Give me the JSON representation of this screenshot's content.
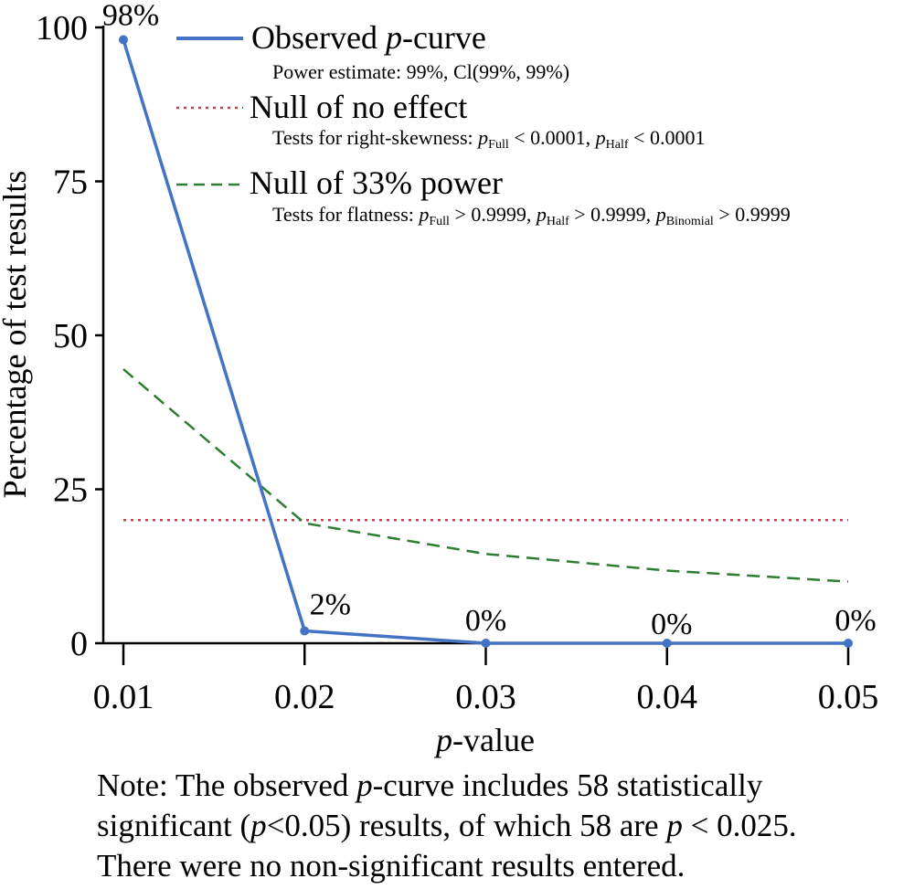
{
  "chart_data": {
    "type": "line",
    "x": [
      0.01,
      0.02,
      0.03,
      0.04,
      0.05
    ],
    "x_tick_labels": [
      "0.01",
      "0.02",
      "0.03",
      "0.04",
      "0.05"
    ],
    "y_ticks": [
      0,
      25,
      50,
      75,
      100
    ],
    "y_tick_labels": [
      "0",
      "25",
      "50",
      "75",
      "100"
    ],
    "ylim": [
      0,
      100
    ],
    "xlim": [
      0.01,
      0.05
    ],
    "xlabel_italic": "p",
    "xlabel_rest": "-value",
    "ylabel": "Percentage of test results",
    "grid": false,
    "legend_position": "top-right",
    "series": [
      {
        "key": "observed",
        "name_prefix": "Observed ",
        "name_italic": "p",
        "name_suffix": "-curve",
        "style": "solid",
        "color": "#4472C4",
        "values": [
          98,
          2,
          0,
          0,
          0
        ],
        "data_labels": [
          "98%",
          "2%",
          "0%",
          "0%",
          "0%"
        ],
        "subtitle": "Power estimate: 99%, Cl(99%, 99%)"
      },
      {
        "key": "null",
        "name": "Null of no effect",
        "style": "dotted",
        "color": "#E8333F",
        "values": [
          20,
          20,
          20,
          20,
          20
        ],
        "subtitle_text": "Tests for right-skewness: ",
        "subtitle_p": "p",
        "subtitle_sub1": "Full",
        "subtitle_val1": " <  0.0001, ",
        "subtitle_sub2": "Half",
        "subtitle_val2": " < 0.0001"
      },
      {
        "key": "power33",
        "name": "Null of 33% power",
        "style": "dashed",
        "color": "#2E7D32",
        "values": [
          44.5,
          19.5,
          14.5,
          11.8,
          10
        ],
        "subtitle_text": "Tests for flatness: ",
        "subtitle_p": "p",
        "subtitle_sub1": "Full",
        "subtitle_val1": " > 0.9999, ",
        "subtitle_sub2": "Half",
        "subtitle_val2": " > 0.9999, ",
        "subtitle_sub3": "Binomial",
        "subtitle_val3": " > 0.9999"
      }
    ]
  },
  "note": {
    "line1_a": "Note: The observed ",
    "line1_p": "p",
    "line1_b": "-curve includes 58 statistically",
    "line2_a": "significant (",
    "line2_p": "p",
    "line2_b": "<0.05) results, of which 58 are ",
    "line2_p2": "p",
    "line2_c": " < 0.025.",
    "line3": "There were no non-significant results entered."
  }
}
